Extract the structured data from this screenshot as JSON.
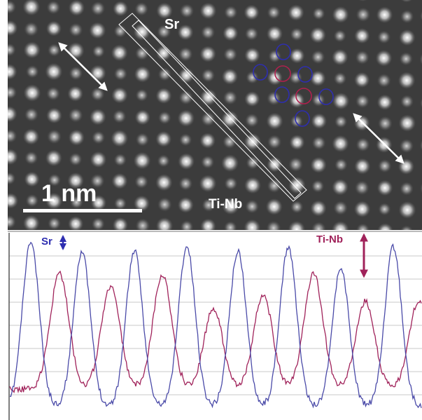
{
  "micrograph": {
    "label_sr": "Sr",
    "label_tinb": "Ti-Nb",
    "scale_bar_label": "1 nm"
  },
  "profile": {
    "label_sr": "Sr",
    "label_tinb": "Ti-Nb"
  },
  "colors": {
    "sr_trace": "#3a3a9e",
    "tinb_trace": "#a0225a",
    "sr_marker": "#2e2eb0",
    "tinb_marker": "#b0204e",
    "overlay": "#ffffff"
  }
}
